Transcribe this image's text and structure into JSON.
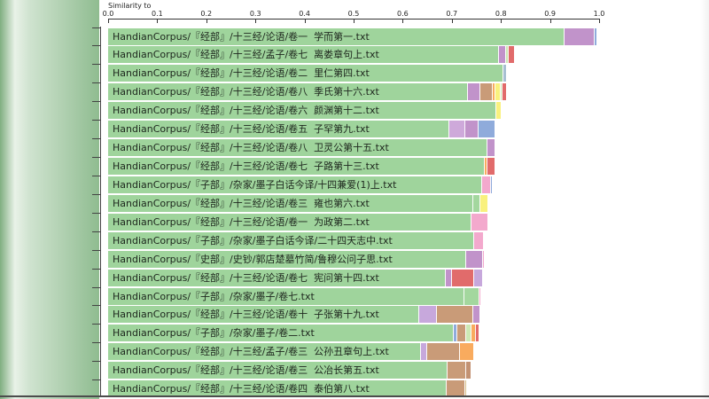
{
  "axis": {
    "title": "Similarity to",
    "ticks": [
      "0.0",
      "0.1",
      "0.2",
      "0.3",
      "0.4",
      "0.5",
      "0.6",
      "0.7",
      "0.8",
      "0.9",
      "1.0"
    ]
  },
  "palette": {
    "green": "#9fd49c",
    "green2": "#a3d79e",
    "palegreen": "#cde9b5",
    "purple": "#c193ca",
    "lightpurple": "#cea9da",
    "lavender": "#c7a8dc",
    "blue": "#8fabdb",
    "bluegray": "#a7c0d2",
    "pink": "#f3a9cd",
    "red": "#e16b6b",
    "orange": "#f9ab5e",
    "yellow": "#f9f17e",
    "brown": "#c99b78",
    "brown2": "#c39273",
    "tan": "#d8c08e"
  },
  "chart_data": {
    "type": "bar",
    "orientation": "horizontal-stacked",
    "xlabel": "Similarity to",
    "xlim": [
      0.0,
      1.0
    ],
    "grid": false,
    "legend": "none",
    "rows": [
      {
        "label": "HandianCorpus/『经部』/十三经/论语/卷一  学而第一.txt",
        "total": 0.995,
        "segments": [
          [
            "green",
            0.927
          ],
          [
            "purple",
            0.062
          ],
          [
            "blue",
            0.006
          ]
        ]
      },
      {
        "label": "HandianCorpus/『经部』/十三经/孟子/卷七  离娄章句上.txt",
        "total": 0.826,
        "segments": [
          [
            "green",
            0.795
          ],
          [
            "purple",
            0.013
          ],
          [
            "palegreen",
            0.007
          ],
          [
            "red",
            0.011
          ]
        ]
      },
      {
        "label": "HandianCorpus/『经部』/十三经/论语/卷二  里仁第四.txt",
        "total": 0.81,
        "segments": [
          [
            "green",
            0.804
          ],
          [
            "bluegray",
            0.006
          ]
        ]
      },
      {
        "label": "HandianCorpus/『经部』/十三经/论语/卷八  季氏第十六.txt",
        "total": 0.811,
        "segments": [
          [
            "green",
            0.731
          ],
          [
            "purple",
            0.025
          ],
          [
            "brown",
            0.025
          ],
          [
            "orange",
            0.006
          ],
          [
            "yellow",
            0.011
          ],
          [
            "palegreen",
            0.004
          ],
          [
            "red",
            0.009
          ]
        ]
      },
      {
        "label": "HandianCorpus/『经部』/十三经/论语/卷六  颜渊第十二.txt",
        "total": 0.799,
        "segments": [
          [
            "green",
            0.788
          ],
          [
            "yellow",
            0.011
          ]
        ]
      },
      {
        "label": "HandianCorpus/『经部』/十三经/论语/卷五  子罕第九.txt",
        "total": 0.787,
        "segments": [
          [
            "green",
            0.693
          ],
          [
            "lightpurple",
            0.033
          ],
          [
            "purple",
            0.027
          ],
          [
            "blue",
            0.034
          ]
        ]
      },
      {
        "label": "HandianCorpus/『经部』/十三经/论语/卷八  卫灵公第十五.txt",
        "total": 0.787,
        "segments": [
          [
            "green",
            0.771
          ],
          [
            "purple",
            0.016
          ]
        ]
      },
      {
        "label": "HandianCorpus/『经部』/十三经/论语/卷七  子路第十三.txt",
        "total": 0.787,
        "segments": [
          [
            "green",
            0.766
          ],
          [
            "orange",
            0.005
          ],
          [
            "red",
            0.016
          ]
        ]
      },
      {
        "label": "HandianCorpus/『子部』/杂家/墨子白话今译/十四兼爱(1)上.txt",
        "total": 0.782,
        "segments": [
          [
            "green",
            0.76
          ],
          [
            "pink",
            0.018
          ],
          [
            "blue",
            0.004
          ]
        ]
      },
      {
        "label": "HandianCorpus/『经部』/十三经/论语/卷三  雍也第六.txt",
        "total": 0.773,
        "segments": [
          [
            "green",
            0.742
          ],
          [
            "green2",
            0.015
          ],
          [
            "yellow",
            0.016
          ]
        ]
      },
      {
        "label": "HandianCorpus/『经部』/十三经/论语/卷一  为政第二.txt",
        "total": 0.773,
        "segments": [
          [
            "green",
            0.739
          ],
          [
            "pink",
            0.034
          ]
        ]
      },
      {
        "label": "HandianCorpus/『子部』/杂家/墨子白话今译/二十四天志中.txt",
        "total": 0.764,
        "segments": [
          [
            "green",
            0.744
          ],
          [
            "pink",
            0.02
          ]
        ]
      },
      {
        "label": "HandianCorpus/『史部』/史钞/郭店楚墓竹简/鲁穆公问子思.txt",
        "total": 0.766,
        "segments": [
          [
            "green",
            0.728
          ],
          [
            "purple",
            0.034
          ],
          [
            "pink",
            0.004
          ]
        ]
      },
      {
        "label": "HandianCorpus/『经部』/十三经/论语/卷七  宪问第十四.txt",
        "total": 0.762,
        "segments": [
          [
            "green",
            0.686
          ],
          [
            "purple",
            0.013
          ],
          [
            "red",
            0.045
          ],
          [
            "lavender",
            0.018
          ]
        ]
      },
      {
        "label": "HandianCorpus/『子部』/杂家/墨子/卷七.txt",
        "total": 0.759,
        "segments": [
          [
            "green",
            0.724
          ],
          [
            "green2",
            0.031
          ],
          [
            "pink",
            0.004
          ]
        ]
      },
      {
        "label": "HandianCorpus/『经部』/十三经/论语/卷十  子张第十九.txt",
        "total": 0.757,
        "segments": [
          [
            "green",
            0.632
          ],
          [
            "lavender",
            0.036
          ],
          [
            "brown",
            0.074
          ],
          [
            "purple",
            0.015
          ]
        ]
      },
      {
        "label": "HandianCorpus/『子部』/杂家/墨子/卷二.txt",
        "total": 0.754,
        "segments": [
          [
            "green",
            0.702
          ],
          [
            "blue",
            0.007
          ],
          [
            "brown",
            0.018
          ],
          [
            "palegreen",
            0.011
          ],
          [
            "orange",
            0.009
          ],
          [
            "red",
            0.007
          ]
        ]
      },
      {
        "label": "HandianCorpus/『经部』/十三经/孟子/卷三  公孙丑章句上.txt",
        "total": 0.744,
        "segments": [
          [
            "green",
            0.635
          ],
          [
            "lavender",
            0.013
          ],
          [
            "brown",
            0.067
          ],
          [
            "orange",
            0.029
          ]
        ]
      },
      {
        "label": "HandianCorpus/『经部』/十三经/论语/卷三  公冶长第五.txt",
        "total": 0.739,
        "segments": [
          [
            "green",
            0.69
          ],
          [
            "brown",
            0.038
          ],
          [
            "brown2",
            0.011
          ]
        ]
      },
      {
        "label": "HandianCorpus/『经部』/十三经/论语/卷四  泰伯第八.txt",
        "total": 0.73,
        "segments": [
          [
            "green",
            0.688
          ],
          [
            "brown",
            0.038
          ],
          [
            "tan",
            0.004
          ]
        ]
      }
    ]
  },
  "layout_colors": {
    "panel_green": "#8fbc90",
    "axis_line": "#333333",
    "bottom_line": "#4c4c4c"
  }
}
